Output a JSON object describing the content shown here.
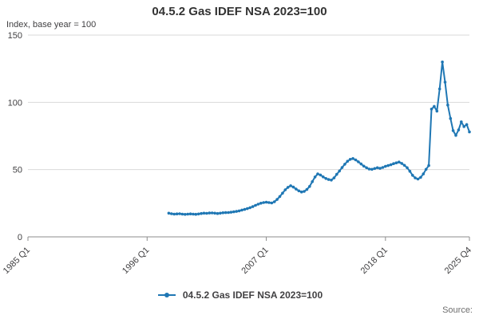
{
  "title": "04.5.2 Gas IDEF NSA 2023=100",
  "y_axis_note": "Index, base year = 100",
  "legend": {
    "label": "04.5.2 Gas IDEF NSA 2023=100"
  },
  "source": "Source:",
  "colors": {
    "line": "#1f77b4",
    "text": "#414042",
    "grid": "#d9d9d9",
    "axis": "#8c8c8c"
  },
  "chart_data": {
    "type": "line",
    "title": "04.5.2 Gas IDEF NSA 2023=100",
    "xlabel": "",
    "ylabel": "Index, base year = 100",
    "ylim": [
      0,
      150
    ],
    "y_ticks": [
      0,
      50,
      100,
      150
    ],
    "x_domain": [
      1985.0,
      2025.75
    ],
    "x_ticks": [
      {
        "label": "1985 Q1",
        "t": 1985.0
      },
      {
        "label": "1996 Q1",
        "t": 1996.0
      },
      {
        "label": "2007 Q1",
        "t": 2007.0
      },
      {
        "label": "2018 Q1",
        "t": 2018.0
      },
      {
        "label": "2025 Q4",
        "t": 2025.75
      }
    ],
    "grid": "horizontal",
    "legend_position": "bottom",
    "series": [
      {
        "name": "04.5.2 Gas IDEF NSA 2023=100",
        "x_start": 1998.0,
        "x_step": 0.25,
        "x_unit": "quarterly (year fraction)",
        "values": [
          17.6,
          17.2,
          16.9,
          17.1,
          17.2,
          16.9,
          16.7,
          16.9,
          17.1,
          16.9,
          16.8,
          17.0,
          17.4,
          17.6,
          17.5,
          17.7,
          17.8,
          17.6,
          17.4,
          17.6,
          17.9,
          18.0,
          18.1,
          18.3,
          18.6,
          18.9,
          19.3,
          19.9,
          20.4,
          21.0,
          21.7,
          22.5,
          23.4,
          24.3,
          25.0,
          25.5,
          25.8,
          25.5,
          25.2,
          26.1,
          27.8,
          30.0,
          32.5,
          35.0,
          36.8,
          38.0,
          37.0,
          35.5,
          34.2,
          33.4,
          33.8,
          35.2,
          37.5,
          41.0,
          44.5,
          46.8,
          46.0,
          44.6,
          43.4,
          42.6,
          42.2,
          43.8,
          46.5,
          49.0,
          51.5,
          54.0,
          56.2,
          57.6,
          58.2,
          57.2,
          55.8,
          54.2,
          52.6,
          51.4,
          50.4,
          50.2,
          50.8,
          51.4,
          50.9,
          51.6,
          52.4,
          53.0,
          53.6,
          54.4,
          55.0,
          55.6,
          54.6,
          53.2,
          51.4,
          48.8,
          45.8,
          43.8,
          43.0,
          44.2,
          46.8,
          50.2,
          53.0,
          95.0,
          97.0,
          93.5,
          110.0,
          130.0,
          115.0,
          98.0,
          88.0,
          79.0,
          75.5,
          79.5,
          85.5,
          82.0,
          83.5,
          78.0
        ]
      }
    ]
  }
}
